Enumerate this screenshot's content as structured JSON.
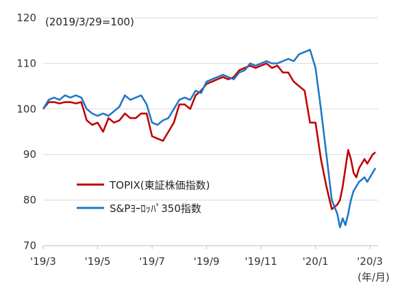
{
  "chart_data": {
    "type": "line",
    "annotation": "(2019/3/29=100)",
    "x_unit_label": "(年/月)",
    "ylim": [
      70,
      120
    ],
    "yticks": [
      "70",
      "80",
      "90",
      "100",
      "110",
      "120"
    ],
    "grid": "horizontal",
    "legend_placement": "lower-left",
    "x_tick_labels": [
      "'19/3",
      "'19/5",
      "'19/7",
      "'19/9",
      "'19/11",
      "'20/1",
      "'20/3"
    ],
    "x_range_months": [
      0,
      12.3
    ],
    "series": [
      {
        "name": "TOPIX(東証株価指数)",
        "color": "#c00000",
        "x": [
          0.0,
          0.2,
          0.4,
          0.6,
          0.8,
          1.0,
          1.2,
          1.4,
          1.6,
          1.8,
          2.0,
          2.2,
          2.4,
          2.6,
          2.8,
          3.0,
          3.2,
          3.4,
          3.6,
          3.8,
          4.0,
          4.2,
          4.4,
          4.6,
          4.8,
          5.0,
          5.2,
          5.4,
          5.6,
          5.8,
          6.0,
          6.2,
          6.4,
          6.6,
          6.8,
          7.0,
          7.2,
          7.4,
          7.6,
          7.8,
          8.0,
          8.2,
          8.4,
          8.6,
          8.8,
          9.0,
          9.2,
          9.4,
          9.6,
          9.8,
          10.0,
          10.2,
          10.4,
          10.6,
          10.8,
          10.9,
          11.0,
          11.1,
          11.2,
          11.3,
          11.4,
          11.5,
          11.6,
          11.7,
          11.8,
          11.9,
          12.0,
          12.1,
          12.2
        ],
        "values": [
          100,
          101.5,
          101.5,
          101.2,
          101.5,
          101.5,
          101.2,
          101.5,
          97.5,
          96.5,
          97,
          95,
          98,
          97,
          97.5,
          99,
          98,
          98,
          99,
          99,
          94,
          93.5,
          93,
          95,
          97,
          101,
          101,
          100,
          103,
          104,
          105.5,
          106,
          106.5,
          107,
          106.5,
          107,
          108.5,
          109,
          109.5,
          109,
          109.5,
          110,
          109,
          109.5,
          108,
          108,
          106,
          105,
          104,
          97,
          97,
          89,
          83,
          78,
          79,
          80,
          83,
          87,
          91,
          89,
          86,
          85,
          87,
          88,
          89,
          88,
          89,
          90,
          90.5
        ]
      },
      {
        "name": "S&Pﾖｰﾛｯﾊﾟ350指数",
        "color": "#1f78c8",
        "x": [
          0.0,
          0.2,
          0.4,
          0.6,
          0.8,
          1.0,
          1.2,
          1.4,
          1.6,
          1.8,
          2.0,
          2.2,
          2.4,
          2.6,
          2.8,
          3.0,
          3.2,
          3.4,
          3.6,
          3.8,
          4.0,
          4.2,
          4.4,
          4.6,
          4.8,
          5.0,
          5.2,
          5.4,
          5.6,
          5.8,
          6.0,
          6.2,
          6.4,
          6.6,
          6.8,
          7.0,
          7.2,
          7.4,
          7.6,
          7.8,
          8.0,
          8.2,
          8.4,
          8.6,
          8.8,
          9.0,
          9.2,
          9.4,
          9.6,
          9.8,
          10.0,
          10.2,
          10.4,
          10.6,
          10.8,
          10.9,
          11.0,
          11.1,
          11.2,
          11.3,
          11.4,
          11.5,
          11.6,
          11.7,
          11.8,
          11.9,
          12.0,
          12.1,
          12.2
        ],
        "values": [
          100,
          102,
          102.5,
          102,
          103,
          102.5,
          103,
          102.5,
          100,
          99,
          98.5,
          99,
          98.5,
          99.5,
          100.5,
          103,
          102,
          102.5,
          103,
          101,
          97,
          96.5,
          97.5,
          98,
          100,
          102,
          102.5,
          102,
          104,
          103.5,
          106,
          106.5,
          107,
          107.5,
          107,
          106.5,
          108,
          108.5,
          110,
          109.5,
          110,
          110.5,
          110,
          110,
          110.5,
          111,
          110.5,
          112,
          112.5,
          113,
          109,
          100,
          90,
          80,
          77,
          74,
          76,
          74.5,
          77,
          80,
          82,
          83,
          84,
          84.5,
          85,
          84,
          85,
          86,
          87
        ]
      }
    ]
  }
}
